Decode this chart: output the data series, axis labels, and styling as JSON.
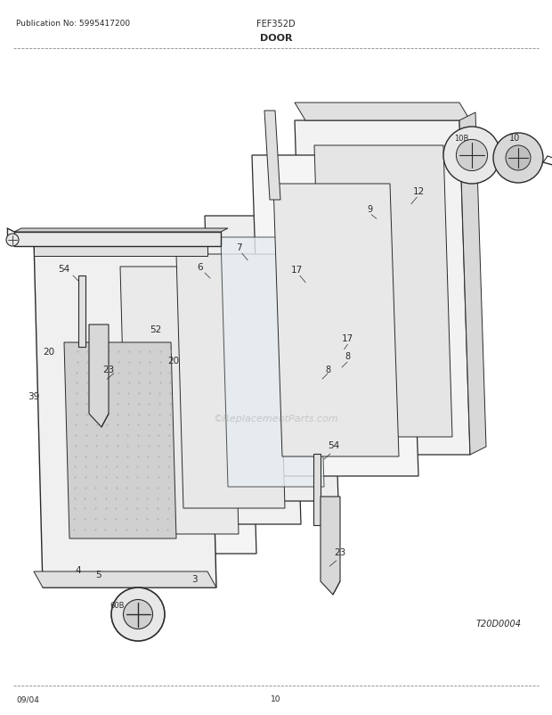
{
  "title": "DOOR",
  "pub_no": "Publication No: 5995417200",
  "model": "FEF352D",
  "date": "09/04",
  "page": "10",
  "diagram_code": "T20D0004",
  "bg_color": "#ffffff",
  "line_color": "#2a2a2a",
  "text_color": "#2a2a2a",
  "watermark": "©ReplacementParts.com"
}
